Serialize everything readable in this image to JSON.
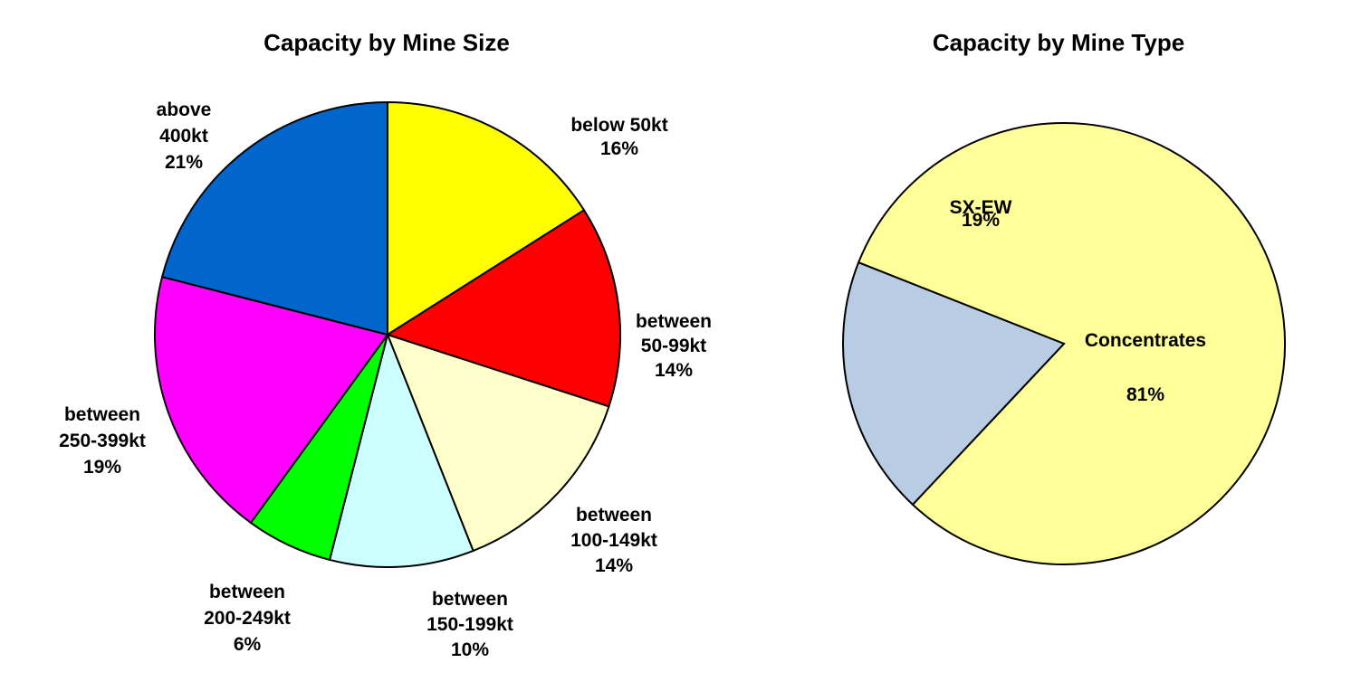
{
  "chart_data": [
    {
      "type": "pie",
      "title": "Capacity by Mine Size",
      "slices": [
        {
          "label": [
            "below 50kt",
            "16%"
          ],
          "value": 16,
          "color": "#ffff00"
        },
        {
          "label": [
            "between",
            "50-99kt",
            "14%"
          ],
          "value": 14,
          "color": "#ff0000"
        },
        {
          "label": [
            "between",
            "100-149kt",
            "14%"
          ],
          "value": 14,
          "color": "#ffffcc"
        },
        {
          "label": [
            "between",
            "150-199kt",
            "10%"
          ],
          "value": 10,
          "color": "#ccffff"
        },
        {
          "label": [
            "between",
            "200-249kt",
            "6%"
          ],
          "value": 6,
          "color": "#00ff00"
        },
        {
          "label": [
            "between",
            "250-399kt",
            "19%"
          ],
          "value": 19,
          "color": "#ff00ff"
        },
        {
          "label": [
            "above",
            "400kt",
            "21%"
          ],
          "value": 21,
          "color": "#0066cc"
        }
      ]
    },
    {
      "type": "pie",
      "title": "Capacity by Mine Type",
      "slices": [
        {
          "label": [
            "Concentrates",
            "81%"
          ],
          "value": 81,
          "color": "#ffff99"
        },
        {
          "label": [
            "SX-EW",
            "19%"
          ],
          "value": 19,
          "color": "#b8cce4"
        }
      ]
    }
  ]
}
